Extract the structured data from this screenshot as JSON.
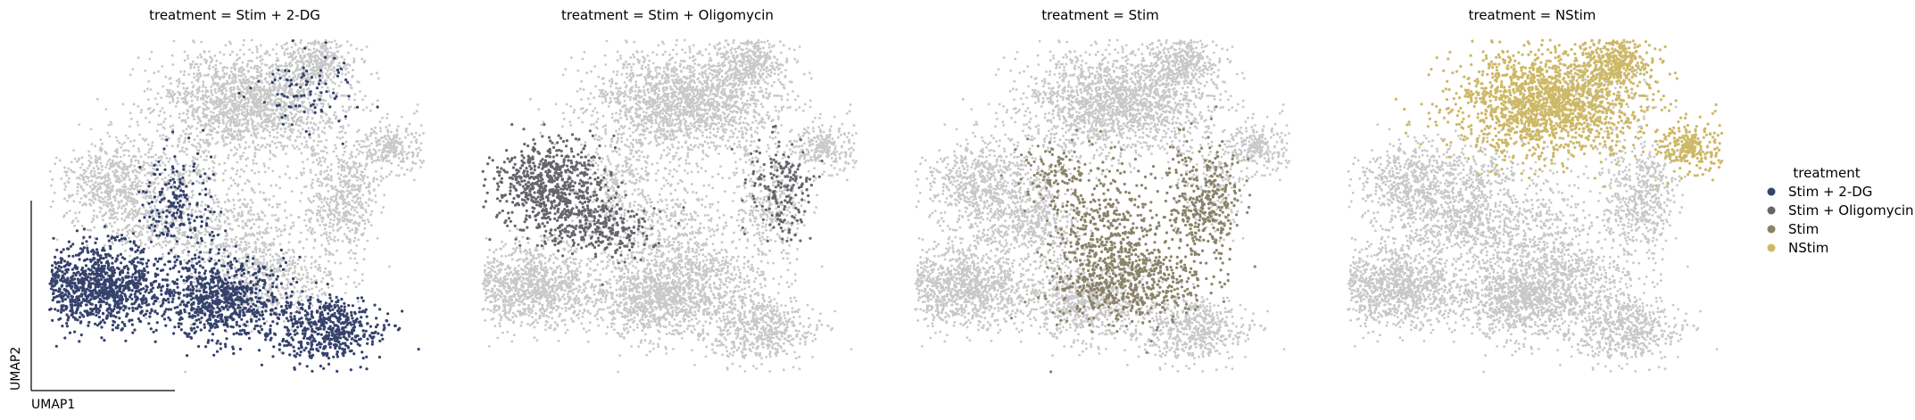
{
  "chart_data": {
    "type": "scatter",
    "embedding": "UMAP",
    "xlabel": "UMAP1",
    "ylabel": "UMAP2",
    "grid": false,
    "legend": {
      "title": "treatment",
      "placement": "right",
      "entries": [
        {
          "label": "Stim + 2-DG",
          "color": "#35426c"
        },
        {
          "label": "Stim + Oligomycin",
          "color": "#65656b"
        },
        {
          "label": "Stim",
          "color": "#8a8369"
        },
        {
          "label": "NStim",
          "color": "#cdb866"
        }
      ]
    },
    "background_color": "#c8c8c8",
    "panels": [
      {
        "title": "treatment = Stim + 2-DG",
        "highlight": "Stim + 2-DG",
        "color": "#35426c",
        "show_axes": true
      },
      {
        "title": "treatment = Stim + Oligomycin",
        "highlight": "Stim + Oligomycin",
        "color": "#65656b",
        "show_axes": false
      },
      {
        "title": "treatment = Stim",
        "highlight": "Stim",
        "color": "#8a8369",
        "show_axes": false
      },
      {
        "title": "treatment = NStim",
        "highlight": "NStim",
        "color": "#cdb866",
        "show_axes": false
      }
    ]
  }
}
